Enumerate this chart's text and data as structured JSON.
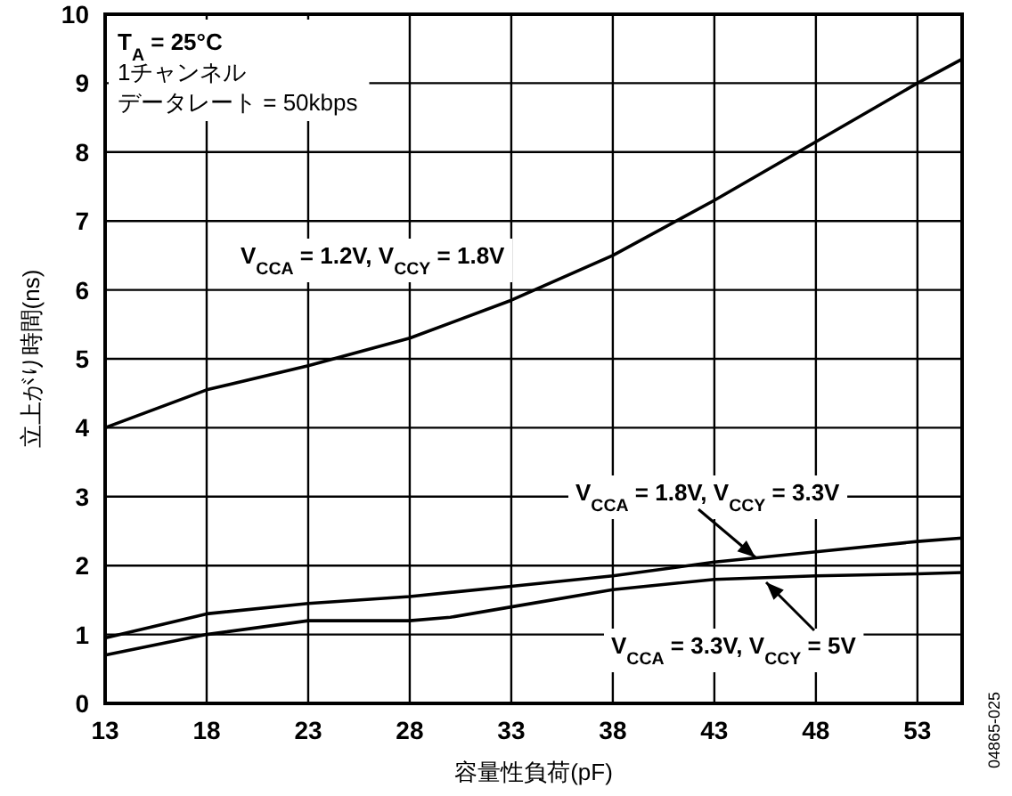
{
  "chart_data": {
    "type": "line",
    "xlabel": "容量性負荷(pF)",
    "ylabel": "立上がり時間(ns)",
    "xlim": [
      13,
      55.2
    ],
    "ylim": [
      0,
      10
    ],
    "xticks": [
      13,
      18,
      23,
      28,
      33,
      38,
      43,
      48,
      53
    ],
    "yticks": [
      0,
      1,
      2,
      3,
      4,
      5,
      6,
      7,
      8,
      9,
      10
    ],
    "grid": true,
    "annotations": [
      "T$_{A}$ = 25°C",
      "1チャンネル",
      "データレート = 50kbps",
      "04865-025"
    ],
    "series": [
      {
        "name": "V$_{CCA}$ = 1.2V, V$_{CCY}$ = 1.8V",
        "color": "#000000",
        "x": [
          13,
          18,
          23,
          28,
          33,
          38,
          43,
          48,
          53,
          55.2
        ],
        "values": [
          4.0,
          4.55,
          4.9,
          5.3,
          5.85,
          6.5,
          7.3,
          8.15,
          9.0,
          9.35
        ]
      },
      {
        "name": "V$_{CCA}$ = 1.8V, V$_{CCY}$ = 3.3V",
        "color": "#000000",
        "x": [
          13,
          18,
          23,
          28,
          33,
          38,
          43,
          48,
          53,
          55.2
        ],
        "values": [
          0.95,
          1.3,
          1.45,
          1.55,
          1.7,
          1.85,
          2.05,
          2.2,
          2.35,
          2.4
        ]
      },
      {
        "name": "V$_{CCA}$ = 3.3V, V$_{CCY}$ = 5V",
        "color": "#000000",
        "x": [
          13,
          18,
          23,
          28,
          30,
          33,
          38,
          43,
          48,
          53,
          55.2
        ],
        "values": [
          0.7,
          1.0,
          1.2,
          1.2,
          1.25,
          1.4,
          1.65,
          1.8,
          1.85,
          1.88,
          1.9
        ]
      }
    ]
  }
}
